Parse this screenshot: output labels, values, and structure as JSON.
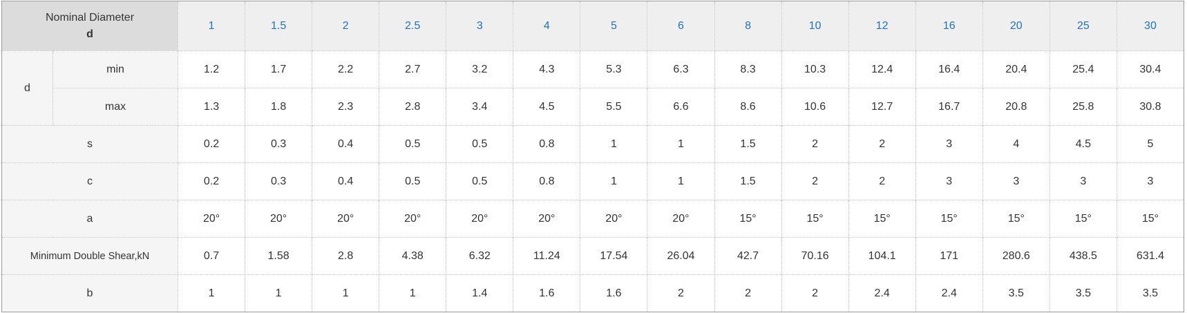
{
  "colors": {
    "column_header_text": "#1e73be",
    "corner_header_bg": "#dcdcdc",
    "column_header_bg": "#efefef",
    "row_label_bg": "#f5f5f5",
    "body_text": "#333333"
  },
  "table": {
    "corner_header": {
      "line1": "Nominal Diameter",
      "line2": "d"
    },
    "columns": [
      "1",
      "1.5",
      "2",
      "2.5",
      "3",
      "4",
      "5",
      "6",
      "8",
      "10",
      "12",
      "16",
      "20",
      "25",
      "30"
    ],
    "row_groups": [
      {
        "label": "d",
        "subrows": [
          {
            "label": "min",
            "values": [
              "1.2",
              "1.7",
              "2.2",
              "2.7",
              "3.2",
              "4.3",
              "5.3",
              "6.3",
              "8.3",
              "10.3",
              "12.4",
              "16.4",
              "20.4",
              "25.4",
              "30.4"
            ]
          },
          {
            "label": "max",
            "values": [
              "1.3",
              "1.8",
              "2.3",
              "2.8",
              "3.4",
              "4.5",
              "5.5",
              "6.6",
              "8.6",
              "10.6",
              "12.7",
              "16.7",
              "20.8",
              "25.8",
              "30.8"
            ]
          }
        ]
      },
      {
        "label": "s",
        "values": [
          "0.2",
          "0.3",
          "0.4",
          "0.5",
          "0.5",
          "0.8",
          "1",
          "1",
          "1.5",
          "2",
          "2",
          "3",
          "4",
          "4.5",
          "5"
        ]
      },
      {
        "label": "c",
        "values": [
          "0.2",
          "0.3",
          "0.4",
          "0.5",
          "0.5",
          "0.8",
          "1",
          "1",
          "1.5",
          "2",
          "2",
          "3",
          "3",
          "3",
          "3"
        ]
      },
      {
        "label": "a",
        "values": [
          "20°",
          "20°",
          "20°",
          "20°",
          "20°",
          "20°",
          "20°",
          "20°",
          "15°",
          "15°",
          "15°",
          "15°",
          "15°",
          "15°",
          "15°"
        ]
      },
      {
        "label": "Minimum Double Shear,kN",
        "small": true,
        "values": [
          "0.7",
          "1.58",
          "2.8",
          "4.38",
          "6.32",
          "11.24",
          "17.54",
          "26.04",
          "42.7",
          "70.16",
          "104.1",
          "171",
          "280.6",
          "438.5",
          "631.4"
        ]
      },
      {
        "label": "b",
        "values": [
          "1",
          "1",
          "1",
          "1",
          "1.4",
          "1.6",
          "1.6",
          "2",
          "2",
          "2",
          "2.4",
          "2.4",
          "3.5",
          "3.5",
          "3.5"
        ]
      }
    ]
  }
}
